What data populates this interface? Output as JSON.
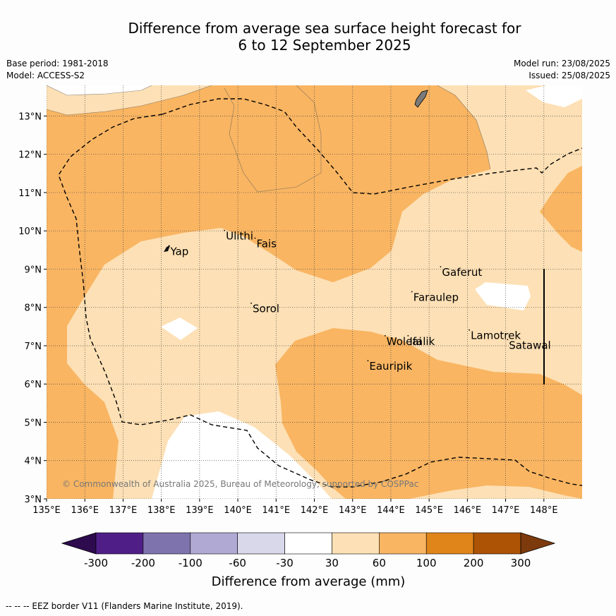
{
  "title_line1": "Difference from average sea surface height forecast for",
  "title_line2": "6 to 12 September 2025",
  "base_period": "Base period: 1981-2018",
  "model": "Model: ACCESS-S2",
  "model_run": "Model run: 23/08/2025",
  "issued": "Issued: 25/08/2025",
  "copyright": "© Commonwealth of Australia 2025, Bureau of Meteorology, supported by COSPPac",
  "footer": "--  --  -- EEZ border V11 (Flanders Marine Institute, 2019).",
  "lon_ticks": [
    "135°E",
    "136°E",
    "137°E",
    "138°E",
    "139°E",
    "140°E",
    "141°E",
    "142°E",
    "143°E",
    "144°E",
    "145°E",
    "146°E",
    "147°E",
    "148°E"
  ],
  "lat_ticks": [
    "3°N",
    "4°N",
    "5°N",
    "6°N",
    "7°N",
    "8°N",
    "9°N",
    "10°N",
    "11°N",
    "12°N",
    "13°N"
  ],
  "places": [
    {
      "name": "Yap",
      "lon": 138.2,
      "lat": 9.5
    },
    {
      "name": "Ulithi",
      "lon": 139.65,
      "lat": 9.9
    },
    {
      "name": "Fais",
      "lon": 140.45,
      "lat": 9.7
    },
    {
      "name": "Sorol",
      "lon": 140.35,
      "lat": 8.0
    },
    {
      "name": "Gaferut",
      "lon": 145.3,
      "lat": 8.95
    },
    {
      "name": "Faraulep",
      "lon": 144.55,
      "lat": 8.3
    },
    {
      "name": "Woleai",
      "lon": 143.85,
      "lat": 7.15
    },
    {
      "name": "Ifalik",
      "lon": 144.45,
      "lat": 7.15
    },
    {
      "name": "Lamotrek",
      "lon": 146.05,
      "lat": 7.3
    },
    {
      "name": "Satawal",
      "lon": 147.05,
      "lat": 7.05
    },
    {
      "name": "Eauripik",
      "lon": 143.4,
      "lat": 6.5
    }
  ],
  "colorbar": {
    "label": "Difference from average (mm)",
    "tick_labels": [
      "-300",
      "-200",
      "-100",
      "-60",
      "-30",
      "30",
      "60",
      "100",
      "200",
      "300"
    ],
    "colors": [
      "#2d0b4e",
      "#4f1f87",
      "#7f73ad",
      "#b0a9d3",
      "#d8d8ea",
      "#ffffff",
      "#fde0b5",
      "#f9b562",
      "#e0851a",
      "#ac5306",
      "#7d3a0d"
    ]
  },
  "colors": {
    "land": "#7a7a7a",
    "border": "#111111"
  }
}
